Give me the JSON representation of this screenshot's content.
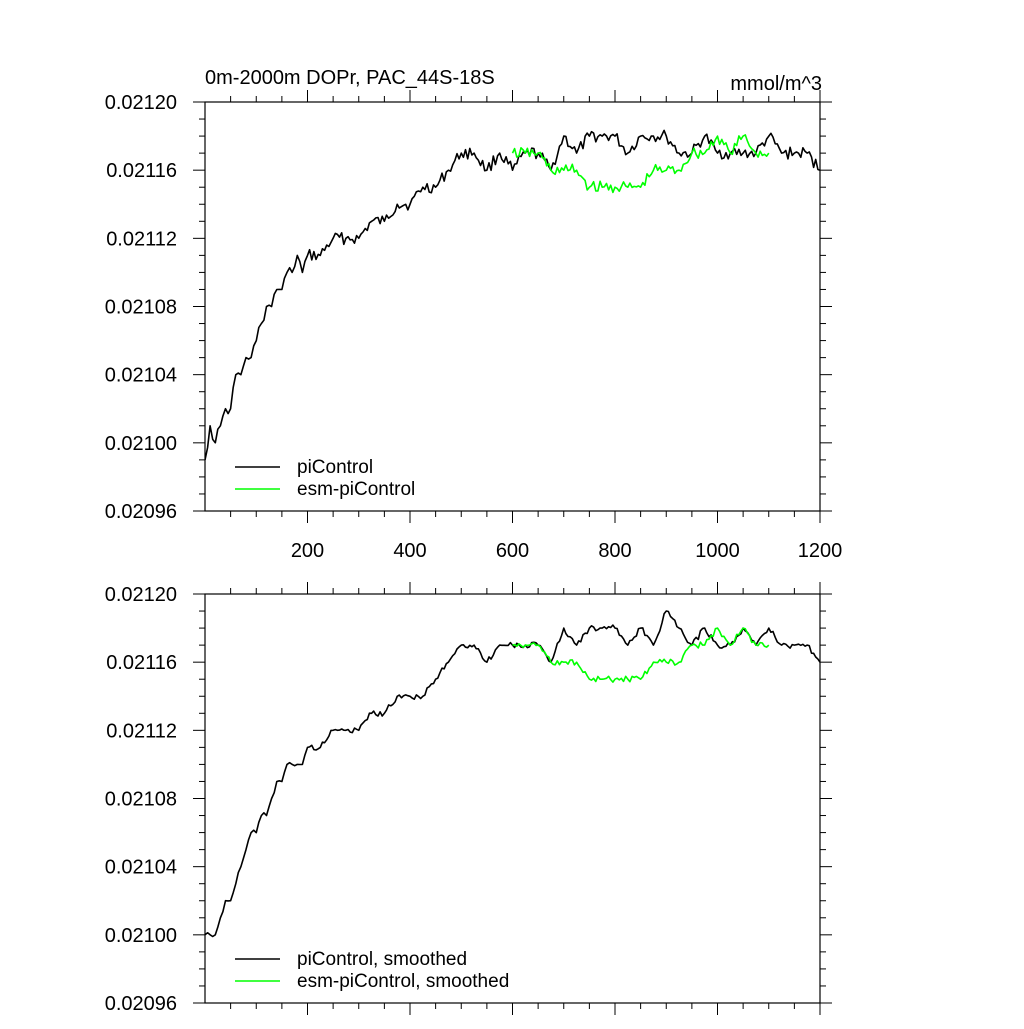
{
  "chart_data": [
    {
      "type": "line",
      "title": "0m-2000m DOPr, PAC_44S-18S",
      "units": "mmol/m^3",
      "xlim": [
        0,
        1200
      ],
      "ylim": [
        0.02096,
        0.0212
      ],
      "xticks": [
        200,
        400,
        600,
        800,
        1000,
        1200
      ],
      "xtick_labels": [
        "200",
        "400",
        "600",
        "800",
        "1000",
        "1200"
      ],
      "yticks": [
        0.02096,
        0.021,
        0.02104,
        0.02108,
        0.02112,
        0.02116,
        0.0212
      ],
      "ytick_labels": [
        "0.02096",
        "0.02100",
        "0.02104",
        "0.02108",
        "0.02112",
        "0.02116",
        "0.02120"
      ],
      "legend_position": "bottom-left",
      "series": [
        {
          "name": "piControl",
          "color": "#000000",
          "x": [
            0,
            10,
            20,
            30,
            40,
            50,
            60,
            70,
            80,
            90,
            100,
            110,
            120,
            130,
            140,
            150,
            160,
            170,
            180,
            190,
            200,
            225,
            250,
            275,
            300,
            325,
            350,
            375,
            400,
            425,
            450,
            475,
            500,
            525,
            550,
            575,
            600,
            625,
            650,
            675,
            700,
            725,
            750,
            775,
            800,
            825,
            850,
            875,
            900,
            925,
            950,
            975,
            1000,
            1025,
            1050,
            1075,
            1100,
            1125,
            1150,
            1175,
            1200
          ],
          "y": [
            0.02099,
            0.02101,
            0.021,
            0.02101,
            0.02102,
            0.02102,
            0.02104,
            0.02104,
            0.02105,
            0.02105,
            0.02106,
            0.02107,
            0.02108,
            0.02108,
            0.02109,
            0.02109,
            0.0211,
            0.0211,
            0.02111,
            0.0211,
            0.02111,
            0.02111,
            0.02112,
            0.02112,
            0.02112,
            0.02113,
            0.02113,
            0.02114,
            0.02114,
            0.02115,
            0.02115,
            0.02116,
            0.02117,
            0.02117,
            0.02116,
            0.02117,
            0.02116,
            0.02117,
            0.02117,
            0.02116,
            0.02118,
            0.02117,
            0.02118,
            0.02118,
            0.02118,
            0.02117,
            0.02118,
            0.02118,
            0.02118,
            0.02117,
            0.02117,
            0.02118,
            0.02117,
            0.02117,
            0.02117,
            0.02117,
            0.02118,
            0.02117,
            0.02117,
            0.02117,
            0.02116
          ]
        },
        {
          "name": "esm-piControl",
          "color": "#00ff00",
          "x": [
            600,
            625,
            650,
            675,
            700,
            725,
            750,
            775,
            800,
            825,
            850,
            875,
            900,
            925,
            950,
            975,
            1000,
            1025,
            1050,
            1075,
            1100
          ],
          "y": [
            0.02117,
            0.02117,
            0.02117,
            0.02116,
            0.02116,
            0.02116,
            0.02115,
            0.02115,
            0.02115,
            0.02115,
            0.02115,
            0.02116,
            0.02116,
            0.02116,
            0.02117,
            0.02117,
            0.02118,
            0.02117,
            0.02118,
            0.02117,
            0.02117
          ]
        }
      ]
    },
    {
      "type": "line",
      "title": "",
      "xlim": [
        0,
        1200
      ],
      "ylim": [
        0.02096,
        0.0212
      ],
      "yticks": [
        0.02096,
        0.021,
        0.02104,
        0.02108,
        0.02112,
        0.02116,
        0.0212
      ],
      "ytick_labels": [
        "0.02096",
        "0.02100",
        "0.02104",
        "0.02108",
        "0.02112",
        "0.02116",
        "0.02120"
      ],
      "legend_position": "bottom-left",
      "series": [
        {
          "name": "piControl, smoothed",
          "color": "#000000",
          "x": [
            0,
            10,
            20,
            30,
            40,
            50,
            60,
            70,
            80,
            90,
            100,
            110,
            120,
            130,
            140,
            150,
            160,
            170,
            180,
            190,
            200,
            225,
            250,
            275,
            300,
            325,
            350,
            375,
            400,
            425,
            450,
            475,
            500,
            525,
            550,
            575,
            600,
            625,
            650,
            675,
            700,
            725,
            750,
            775,
            800,
            825,
            850,
            875,
            900,
            925,
            950,
            975,
            1000,
            1025,
            1050,
            1075,
            1100,
            1125,
            1150,
            1175,
            1200
          ],
          "y": [
            0.021,
            0.021,
            0.021,
            0.02101,
            0.02102,
            0.02102,
            0.02103,
            0.02104,
            0.02105,
            0.02106,
            0.02106,
            0.02107,
            0.02107,
            0.02108,
            0.02109,
            0.02109,
            0.0211,
            0.0211,
            0.0211,
            0.0211,
            0.02111,
            0.02111,
            0.02112,
            0.02112,
            0.02112,
            0.02113,
            0.02113,
            0.02114,
            0.02114,
            0.02114,
            0.02115,
            0.02116,
            0.02117,
            0.02117,
            0.02116,
            0.02117,
            0.02117,
            0.02117,
            0.02117,
            0.02116,
            0.02118,
            0.02117,
            0.02118,
            0.02118,
            0.02118,
            0.02117,
            0.02118,
            0.02117,
            0.02119,
            0.02118,
            0.02117,
            0.02118,
            0.02117,
            0.02117,
            0.02118,
            0.02117,
            0.02118,
            0.02117,
            0.02117,
            0.02117,
            0.02116
          ]
        },
        {
          "name": "esm-piControl, smoothed",
          "color": "#00ff00",
          "x": [
            600,
            625,
            650,
            675,
            700,
            725,
            750,
            775,
            800,
            825,
            850,
            875,
            900,
            925,
            950,
            975,
            1000,
            1025,
            1050,
            1075,
            1100
          ],
          "y": [
            0.02117,
            0.02117,
            0.02117,
            0.02116,
            0.02116,
            0.02116,
            0.02115,
            0.02115,
            0.02115,
            0.02115,
            0.02115,
            0.02116,
            0.02116,
            0.02116,
            0.02117,
            0.02117,
            0.02118,
            0.02117,
            0.02118,
            0.02117,
            0.02117
          ]
        }
      ]
    }
  ]
}
